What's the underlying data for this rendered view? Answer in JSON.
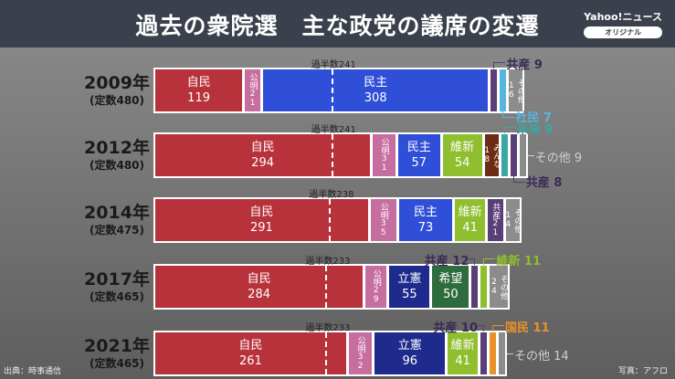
{
  "header": {
    "title": "過去の衆院選　主な政党の議席の変遷",
    "logo": "Yahoo!ニュース",
    "logo_sub": "オリジナル"
  },
  "footer": {
    "source": "出典：時事通信",
    "photo": "写真：アフロ"
  },
  "chart_data": {
    "type": "bar",
    "title": "過去の衆院選　主な政党の議席の変遷",
    "orientation": "horizontal-stacked",
    "colors": {
      "自民": "#b8323c",
      "公明": "#c76ea0",
      "民主": "#2f4fd8",
      "維新": "#8fbe2f",
      "みんな": "#6b2b14",
      "未来": "#3aa7a2",
      "共産": "#5a3e76",
      "社民": "#56b6de",
      "その他": "#8c8c8c",
      "立憲": "#1e2a8c",
      "希望": "#2d6c3c",
      "国民": "#e8922c"
    },
    "rows": [
      {
        "year": "2009年",
        "seats": "(定数480)",
        "majority_label": "過半数241",
        "majority": 241,
        "total": 480,
        "segments": [
          {
            "party": "自民",
            "value": 119,
            "mode": "in"
          },
          {
            "party": "公明",
            "value": 21,
            "mode": "v"
          },
          {
            "party": "民主",
            "value": 308,
            "mode": "in"
          },
          {
            "party": "共産",
            "value": 9,
            "mode": "out",
            "side": "top-right",
            "label": "共産 9"
          },
          {
            "party": "社民",
            "value": 7,
            "mode": "out",
            "side": "bottom-right",
            "label": "社民 7"
          },
          {
            "party": "その他",
            "value": 16,
            "mode": "v"
          }
        ]
      },
      {
        "year": "2012年",
        "seats": "(定数480)",
        "majority_label": "過半数241",
        "majority": 241,
        "total": 480,
        "segments": [
          {
            "party": "自民",
            "value": 294,
            "mode": "in"
          },
          {
            "party": "公明",
            "value": 31,
            "mode": "v"
          },
          {
            "party": "民主",
            "value": 57,
            "mode": "in"
          },
          {
            "party": "維新",
            "value": 54,
            "mode": "in"
          },
          {
            "party": "みんな",
            "value": 18,
            "mode": "v"
          },
          {
            "party": "未来",
            "value": 9,
            "mode": "out",
            "side": "top-right",
            "label": "未来 9"
          },
          {
            "party": "共産",
            "value": 8,
            "mode": "out",
            "side": "bottom-right",
            "label": "共産 8"
          },
          {
            "party": "その他",
            "value": 9,
            "mode": "out",
            "side": "right",
            "label": "その他 9"
          }
        ]
      },
      {
        "year": "2014年",
        "seats": "(定数475)",
        "majority_label": "過半数238",
        "majority": 238,
        "total": 475,
        "segments": [
          {
            "party": "自民",
            "value": 291,
            "mode": "in"
          },
          {
            "party": "公明",
            "value": 35,
            "mode": "v"
          },
          {
            "party": "民主",
            "value": 73,
            "mode": "in"
          },
          {
            "party": "維新",
            "value": 41,
            "mode": "in"
          },
          {
            "party": "共産",
            "value": 21,
            "mode": "v"
          },
          {
            "party": "その他",
            "value": 14,
            "mode": "v"
          }
        ]
      },
      {
        "year": "2017年",
        "seats": "(定数465)",
        "majority_label": "過半数233",
        "majority": 233,
        "total": 465,
        "segments": [
          {
            "party": "自民",
            "value": 284,
            "mode": "in"
          },
          {
            "party": "公明",
            "value": 29,
            "mode": "v"
          },
          {
            "party": "立憲",
            "value": 55,
            "mode": "in"
          },
          {
            "party": "希望",
            "value": 50,
            "mode": "in"
          },
          {
            "party": "共産",
            "value": 12,
            "mode": "out",
            "side": "top-left",
            "label": "共産 12"
          },
          {
            "party": "維新",
            "value": 11,
            "mode": "out",
            "side": "top-right",
            "label": "維新 11"
          },
          {
            "party": "その他",
            "value": 24,
            "mode": "v"
          }
        ]
      },
      {
        "year": "2021年",
        "seats": "(定数465)",
        "majority_label": "過半数233",
        "majority": 233,
        "total": 465,
        "segments": [
          {
            "party": "自民",
            "value": 261,
            "mode": "in"
          },
          {
            "party": "公明",
            "value": 32,
            "mode": "v"
          },
          {
            "party": "立憲",
            "value": 96,
            "mode": "in"
          },
          {
            "party": "維新",
            "value": 41,
            "mode": "in"
          },
          {
            "party": "共産",
            "value": 10,
            "mode": "out",
            "side": "top-left",
            "label": "共産 10"
          },
          {
            "party": "国民",
            "value": 11,
            "mode": "out",
            "side": "top-right",
            "label": "国民 11"
          },
          {
            "party": "その他",
            "value": 14,
            "mode": "out",
            "side": "right",
            "label": "その他 14"
          }
        ]
      }
    ]
  }
}
